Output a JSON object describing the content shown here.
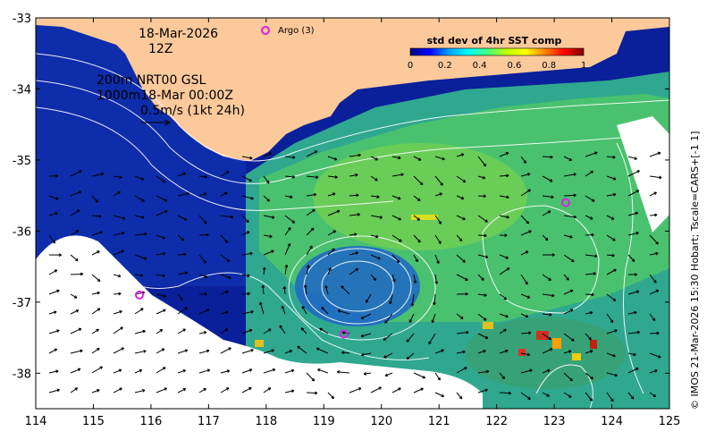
{
  "map": {
    "date": "18-Mar-2026",
    "hour": "12Z",
    "line1": "200m  NRT00 GSL",
    "line2": "1000m18-Mar 00:00Z",
    "scale_vector": "0.5m/s (1kt 24h)",
    "argo_legend": "Argo (3)",
    "credit": "© IMOS 21-Mar-2026 15:30 Hobart; Tscale=CARS+[-1 1]",
    "lon_ticks": [
      "114",
      "115",
      "116",
      "117",
      "118",
      "119",
      "120",
      "121",
      "122",
      "123",
      "124",
      "125"
    ],
    "lat_ticks": [
      "-33",
      "-34",
      "-35",
      "-36",
      "-37",
      "-38"
    ],
    "lon_range": [
      114,
      125
    ],
    "lat_range": [
      -38.5,
      -33
    ],
    "argo_floats": [
      {
        "lon": 115.8,
        "lat": -36.9
      },
      {
        "lon": 119.35,
        "lat": -37.45
      },
      {
        "lon": 123.2,
        "lat": -35.6
      }
    ],
    "colors": {
      "land": "#fcc99b",
      "ocean_deep": "#0a1f9a",
      "contour": "#ffffff",
      "argo": "#e020e0"
    }
  },
  "colorbar": {
    "title": "std dev of 4hr SST comp",
    "ticks": [
      "0",
      "0.2",
      "0.4",
      "0.6",
      "0.8",
      "1"
    ],
    "range": [
      0,
      1
    ],
    "stops": [
      "#000080",
      "#0000ff",
      "#00a0ff",
      "#00ffff",
      "#40ff80",
      "#c0ff00",
      "#ffff00",
      "#ff8000",
      "#ff0000",
      "#800000"
    ]
  }
}
